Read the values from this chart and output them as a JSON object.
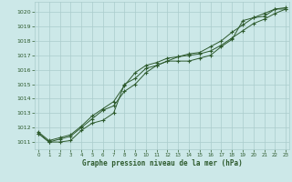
{
  "title": "Graphe pression niveau de la mer (hPa)",
  "bg_color": "#cce8e8",
  "grid_color": "#aacccc",
  "line_color": "#2d5a2d",
  "xlim": [
    -0.3,
    23.3
  ],
  "ylim": [
    1010.5,
    1020.7
  ],
  "yticks": [
    1011,
    1012,
    1013,
    1014,
    1015,
    1016,
    1017,
    1018,
    1019,
    1020
  ],
  "xticks": [
    0,
    1,
    2,
    3,
    4,
    5,
    6,
    7,
    8,
    9,
    10,
    11,
    12,
    13,
    14,
    15,
    16,
    17,
    18,
    19,
    20,
    21,
    22,
    23
  ],
  "series": [
    [
      1011.6,
      1011.0,
      1011.0,
      1011.1,
      1011.8,
      1012.3,
      1012.5,
      1013.0,
      1015.0,
      1015.4,
      1016.1,
      1016.3,
      1016.6,
      1016.6,
      1016.6,
      1016.8,
      1017.0,
      1017.6,
      1018.1,
      1019.4,
      1019.6,
      1019.7,
      1020.2,
      1020.2
    ],
    [
      1011.6,
      1011.0,
      1011.2,
      1011.4,
      1012.0,
      1012.6,
      1013.2,
      1013.5,
      1014.5,
      1015.0,
      1015.8,
      1016.3,
      1016.6,
      1016.9,
      1017.0,
      1017.1,
      1017.3,
      1017.7,
      1018.2,
      1018.7,
      1019.2,
      1019.5,
      1019.9,
      1020.2
    ],
    [
      1011.7,
      1011.1,
      1011.3,
      1011.5,
      1012.1,
      1012.8,
      1013.3,
      1013.8,
      1014.9,
      1015.8,
      1016.3,
      1016.5,
      1016.8,
      1016.9,
      1017.1,
      1017.2,
      1017.6,
      1018.0,
      1018.6,
      1019.1,
      1019.6,
      1019.9,
      1020.2,
      1020.3
    ]
  ]
}
